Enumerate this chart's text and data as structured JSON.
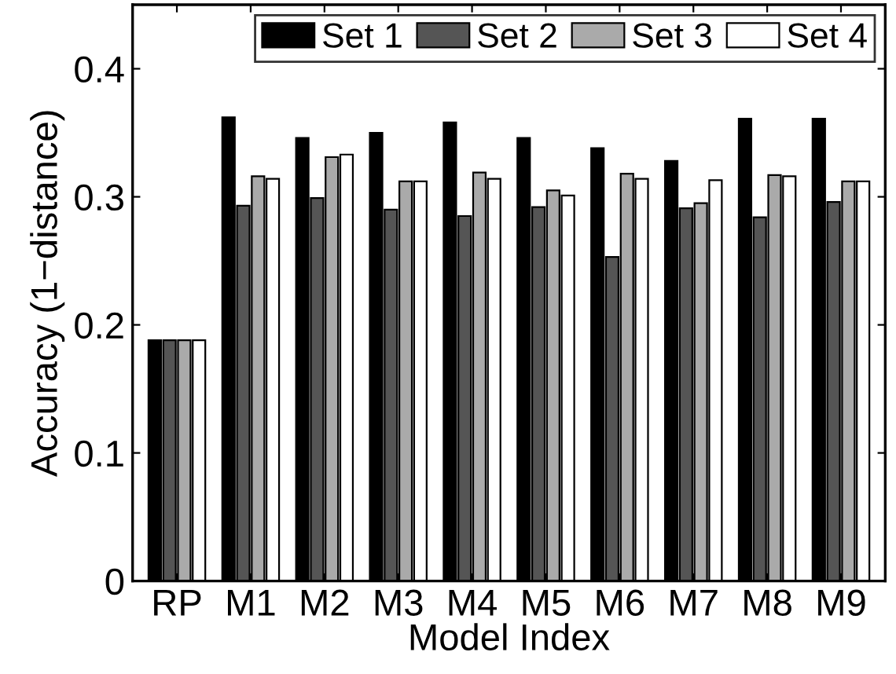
{
  "chart_data": {
    "type": "bar",
    "xlabel": "Model Index",
    "ylabel": "Accuracy (1−distance)",
    "categories": [
      "RP",
      "M1",
      "M2",
      "M3",
      "M4",
      "M5",
      "M6",
      "M7",
      "M8",
      "M9"
    ],
    "series": [
      {
        "name": "Set 1",
        "color": "#000000",
        "values": [
          0.188,
          0.362,
          0.346,
          0.35,
          0.358,
          0.346,
          0.338,
          0.328,
          0.361,
          0.361
        ]
      },
      {
        "name": "Set 2",
        "color": "#555555",
        "values": [
          0.188,
          0.293,
          0.299,
          0.29,
          0.285,
          0.292,
          0.253,
          0.291,
          0.284,
          0.296
        ]
      },
      {
        "name": "Set 3",
        "color": "#aaaaaa",
        "values": [
          0.188,
          0.316,
          0.331,
          0.312,
          0.319,
          0.305,
          0.318,
          0.295,
          0.317,
          0.312
        ]
      },
      {
        "name": "Set 4",
        "color": "#ffffff",
        "values": [
          0.188,
          0.314,
          0.333,
          0.312,
          0.314,
          0.301,
          0.314,
          0.313,
          0.316,
          0.312
        ]
      }
    ],
    "ylim": [
      0,
      0.45
    ],
    "yticks": [
      0,
      0.1,
      0.2,
      0.3,
      0.4
    ],
    "grid": false,
    "legend": "top right"
  }
}
